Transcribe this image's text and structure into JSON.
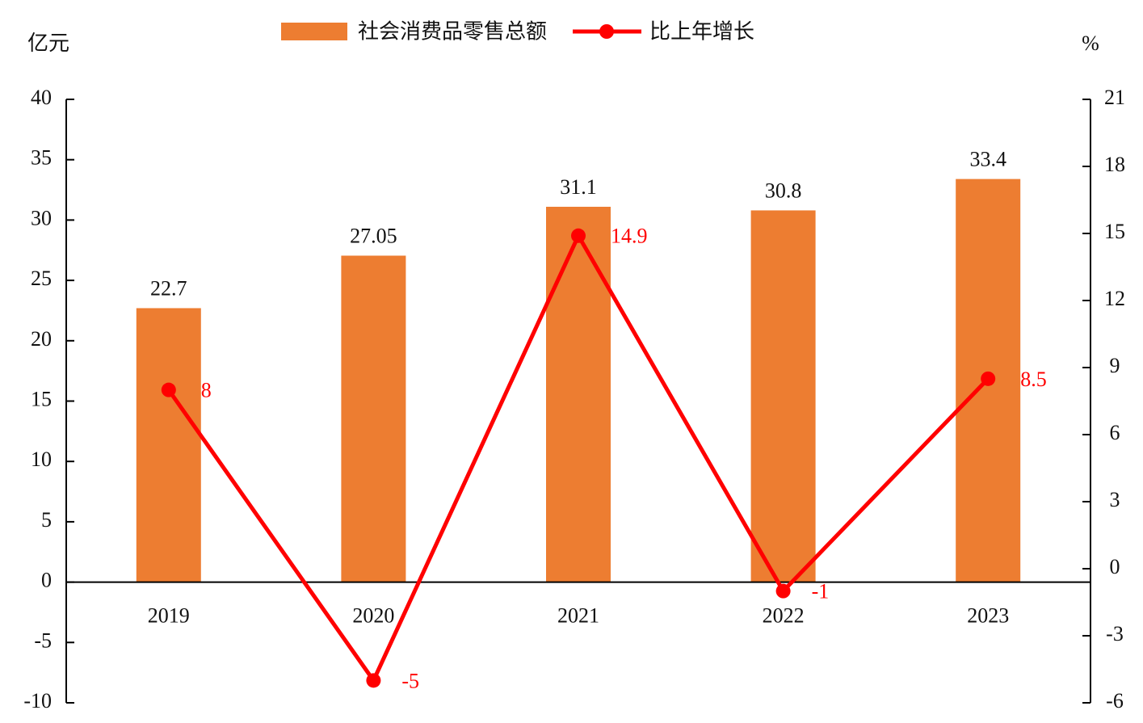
{
  "chart_data": {
    "type": "bar_line",
    "y_label": "亿元",
    "y2_label": "%",
    "categories": [
      "2019",
      "2020",
      "2021",
      "2022",
      "2023"
    ],
    "series": [
      {
        "name": "社会消费品零售总额",
        "kind": "bar",
        "color": "#ED7D31",
        "values": [
          22.7,
          27.05,
          31.1,
          30.8,
          33.4
        ]
      },
      {
        "name": "比上年增长",
        "kind": "line",
        "axis": "y2",
        "color": "#FF0000",
        "values": [
          8,
          -5,
          14.9,
          -1,
          8.5
        ]
      }
    ],
    "ylim": [
      -10,
      40
    ],
    "yticks": [
      -10,
      -5,
      0,
      5,
      10,
      15,
      20,
      25,
      30,
      35,
      40
    ],
    "y2lim": [
      -6,
      21
    ],
    "y2ticks": [
      -6,
      -3,
      0,
      3,
      6,
      9,
      12,
      15,
      18,
      21
    ],
    "grid": false
  }
}
